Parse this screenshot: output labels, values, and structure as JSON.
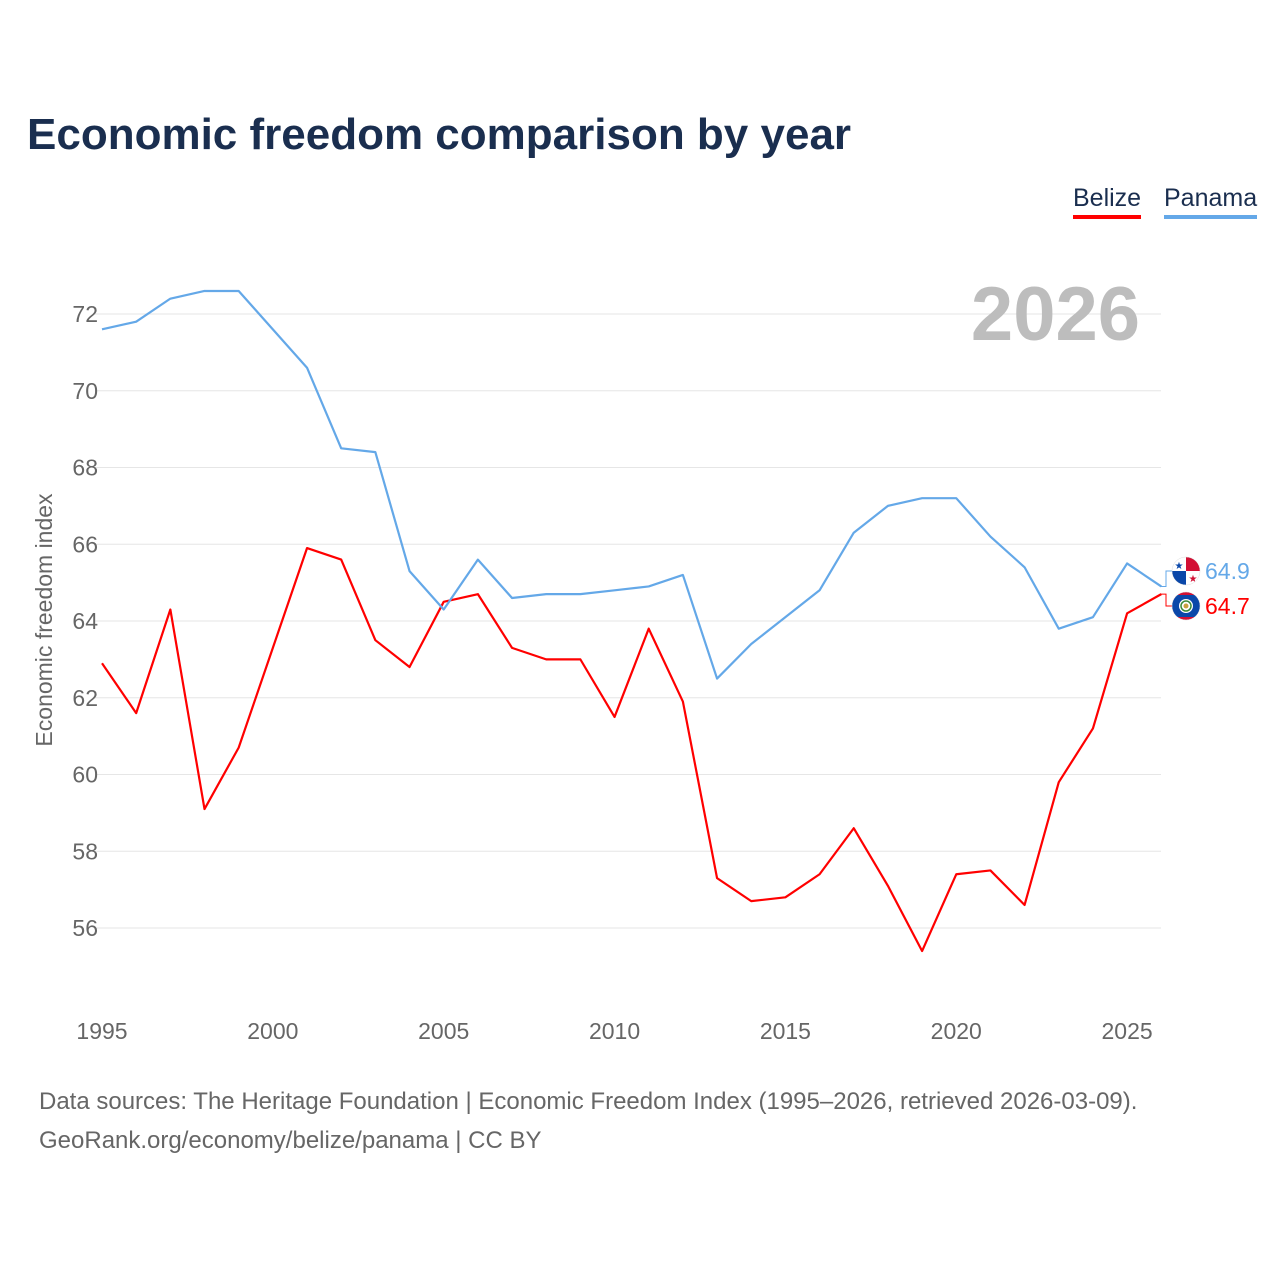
{
  "chart_data": {
    "type": "line",
    "title": "Economic freedom comparison by year",
    "ylabel": "Economic freedom index",
    "xlabel": "",
    "year_watermark": "2026",
    "x": [
      1995,
      1996,
      1997,
      1998,
      1999,
      2000,
      2001,
      2002,
      2003,
      2004,
      2005,
      2006,
      2007,
      2008,
      2009,
      2010,
      2011,
      2012,
      2013,
      2014,
      2015,
      2016,
      2017,
      2018,
      2019,
      2020,
      2021,
      2022,
      2023,
      2024,
      2025,
      2026
    ],
    "xticks": [
      1995,
      2000,
      2005,
      2010,
      2015,
      2020,
      2025
    ],
    "yticks": [
      56,
      58,
      60,
      62,
      64,
      66,
      68,
      70,
      72
    ],
    "xlim": [
      1995,
      2026
    ],
    "ylim": [
      53.9,
      73.7
    ],
    "grid": true,
    "legend_position": "top-right",
    "series": [
      {
        "name": "Belize",
        "color": "#ff0000",
        "end_label": "64.7",
        "values": [
          62.9,
          61.6,
          64.3,
          59.1,
          60.7,
          63.3,
          65.9,
          65.6,
          63.5,
          62.8,
          64.5,
          64.7,
          63.3,
          63.0,
          63.0,
          61.5,
          63.8,
          61.9,
          57.3,
          56.7,
          56.8,
          57.4,
          58.6,
          57.1,
          55.4,
          57.4,
          57.5,
          56.6,
          59.8,
          61.2,
          64.2,
          64.7
        ]
      },
      {
        "name": "Panama",
        "color": "#64a8e8",
        "end_label": "64.9",
        "values": [
          71.6,
          71.8,
          72.4,
          72.6,
          72.6,
          71.6,
          70.6,
          68.5,
          68.4,
          65.3,
          64.3,
          65.6,
          64.6,
          64.7,
          64.7,
          64.8,
          64.9,
          65.2,
          62.5,
          63.4,
          64.1,
          64.8,
          66.3,
          67.0,
          67.2,
          67.2,
          66.2,
          65.4,
          63.8,
          64.1,
          65.5,
          64.9
        ]
      }
    ]
  },
  "footer": {
    "sources": "Data sources: The Heritage Foundation | Economic Freedom Index (1995–2026, retrieved 2026-03-09).",
    "credit": "GeoRank.org/economy/belize/panama | CC BY"
  }
}
